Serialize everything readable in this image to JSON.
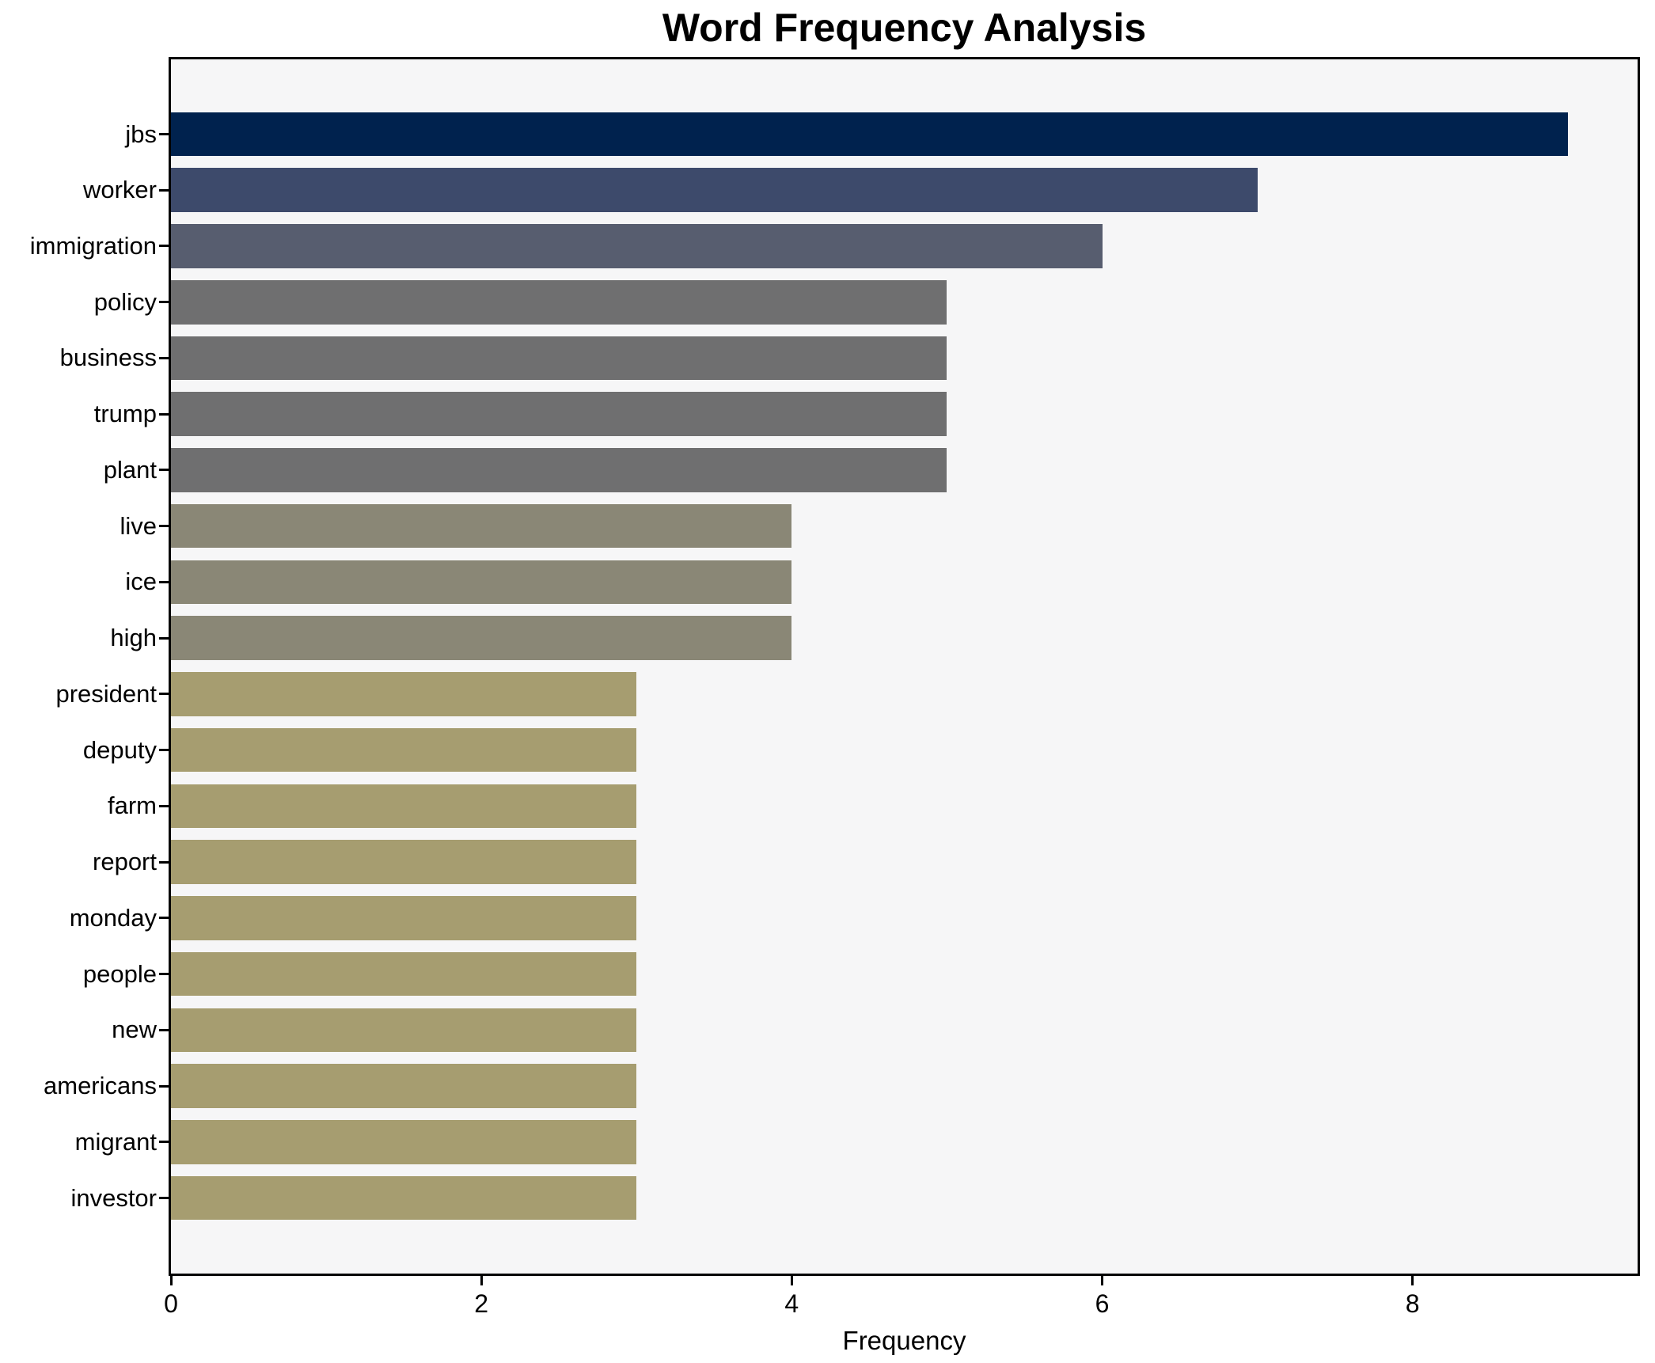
{
  "title": "Word Frequency Analysis",
  "chart_data": {
    "type": "bar",
    "orientation": "horizontal",
    "title": "Word Frequency Analysis",
    "xlabel": "Frequency",
    "ylabel": "",
    "categories": [
      "jbs",
      "worker",
      "immigration",
      "policy",
      "business",
      "trump",
      "plant",
      "live",
      "ice",
      "high",
      "president",
      "deputy",
      "farm",
      "report",
      "monday",
      "people",
      "new",
      "americans",
      "migrant",
      "investor"
    ],
    "values": [
      9,
      7,
      6,
      5,
      5,
      5,
      5,
      4,
      4,
      4,
      3,
      3,
      3,
      3,
      3,
      3,
      3,
      3,
      3,
      3
    ],
    "bar_colors": [
      "#00224e",
      "#3d4a6b",
      "#575d6f",
      "#6f6f70",
      "#6f6f70",
      "#6f6f70",
      "#6f6f70",
      "#8a8776",
      "#8a8776",
      "#8a8776",
      "#a69d70",
      "#a69d70",
      "#a69d70",
      "#a69d70",
      "#a69d70",
      "#a69d70",
      "#a69d70",
      "#a69d70",
      "#a69d70",
      "#a69d70"
    ],
    "xticks": [
      0,
      2,
      4,
      6,
      8
    ],
    "xlim": [
      0,
      9.45
    ],
    "grid": false,
    "legend": null,
    "plot_background": "#f6f6f7",
    "figure_background": "#ffffff",
    "spine_color": "#000000",
    "text_color": "#000000"
  }
}
